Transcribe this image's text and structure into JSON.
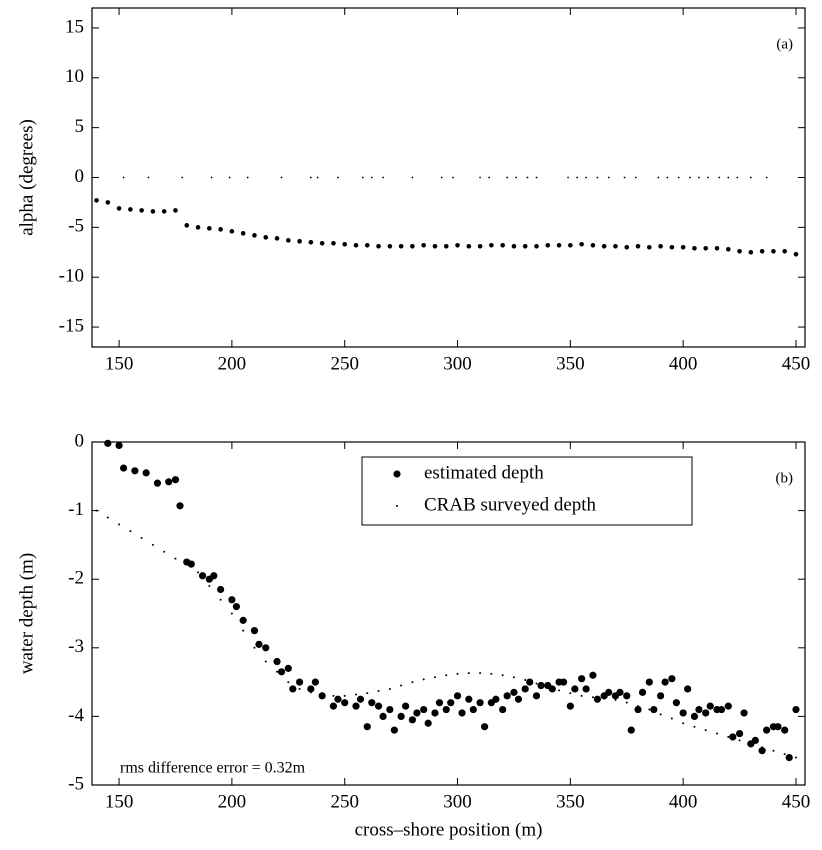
{
  "chart_data": [
    {
      "type": "scatter",
      "panel_label": "(a)",
      "ylabel": "alpha (degrees)",
      "xlim": [
        138,
        454
      ],
      "ylim": [
        -17,
        17
      ],
      "xticks": [
        150,
        200,
        250,
        300,
        350,
        400,
        450
      ],
      "yticks": [
        -15,
        -10,
        -5,
        0,
        5,
        10,
        15
      ],
      "series": [
        {
          "color": "#000000",
          "x": [
            140,
            145,
            150,
            155,
            160,
            165,
            170,
            175,
            180,
            185,
            190,
            195,
            200,
            205,
            210,
            215,
            220,
            225,
            230,
            235,
            240,
            245,
            250,
            255,
            260,
            265,
            270,
            275,
            280,
            285,
            290,
            295,
            300,
            305,
            310,
            315,
            320,
            325,
            330,
            335,
            340,
            345,
            350,
            355,
            360,
            365,
            370,
            375,
            380,
            385,
            390,
            395,
            400,
            405,
            410,
            415,
            420,
            425,
            430,
            435,
            440,
            445,
            450
          ],
          "values": [
            -2.3,
            -2.5,
            -3.1,
            -3.2,
            -3.3,
            -3.4,
            -3.4,
            -3.3,
            -4.8,
            -5.0,
            -5.1,
            -5.2,
            -5.4,
            -5.6,
            -5.8,
            -6.0,
            -6.1,
            -6.3,
            -6.4,
            -6.5,
            -6.6,
            -6.6,
            -6.7,
            -6.8,
            -6.8,
            -6.9,
            -6.9,
            -6.9,
            -6.9,
            -6.8,
            -6.9,
            -6.9,
            -6.8,
            -6.9,
            -6.9,
            -6.8,
            -6.8,
            -6.9,
            -6.9,
            -6.9,
            -6.8,
            -6.8,
            -6.8,
            -6.7,
            -6.8,
            -6.9,
            -6.9,
            -7.0,
            -6.9,
            -7.0,
            -6.9,
            -7.0,
            -7.0,
            -7.1,
            -7.1,
            -7.1,
            -7.2,
            -7.4,
            -7.5,
            -7.4,
            -7.4,
            -7.4,
            -7.7
          ]
        },
        {
          "color": "#000000",
          "x": [
            152,
            163,
            178,
            191,
            199,
            207,
            222,
            235,
            238,
            247,
            258,
            262,
            267,
            280,
            293,
            298,
            310,
            314,
            322,
            326,
            331,
            335,
            349,
            353,
            357,
            362,
            367,
            374,
            379,
            389,
            393,
            398,
            403,
            407,
            411,
            416,
            420,
            424,
            430,
            437
          ],
          "values": [
            0,
            0,
            0,
            0,
            0,
            0,
            0,
            0,
            0,
            0,
            0,
            0,
            0,
            0,
            0,
            0,
            0,
            0,
            0,
            0,
            0,
            0,
            0,
            0,
            0,
            0,
            0,
            0,
            0,
            0,
            0,
            0,
            0,
            0,
            0,
            0,
            0,
            0,
            0,
            0
          ]
        }
      ]
    },
    {
      "type": "scatter",
      "panel_label": "(b)",
      "ylabel": "water depth (m)",
      "xlabel": "cross–shore position (m)",
      "annotation": "rms difference error = 0.32m",
      "legend": "upper right",
      "xlim": [
        138,
        454
      ],
      "ylim": [
        -5,
        0
      ],
      "xticks": [
        150,
        200,
        250,
        300,
        350,
        400,
        450
      ],
      "yticks": [
        -5,
        -4,
        -3,
        -2,
        -1,
        0
      ],
      "series": [
        {
          "name": "estimated depth",
          "color": "#000000",
          "x": [
            145,
            150,
            152,
            157,
            162,
            167,
            172,
            175,
            177,
            180,
            182,
            187,
            190,
            192,
            195,
            200,
            202,
            205,
            210,
            212,
            215,
            220,
            222,
            225,
            227,
            230,
            235,
            237,
            240,
            245,
            247,
            250,
            255,
            257,
            260,
            262,
            265,
            267,
            270,
            272,
            275,
            277,
            280,
            282,
            285,
            287,
            290,
            292,
            295,
            297,
            300,
            302,
            305,
            307,
            310,
            312,
            315,
            317,
            320,
            322,
            325,
            327,
            330,
            332,
            335,
            337,
            340,
            342,
            345,
            347,
            350,
            352,
            355,
            357,
            360,
            362,
            365,
            367,
            370,
            372,
            375,
            377,
            380,
            382,
            385,
            387,
            390,
            392,
            395,
            397,
            400,
            402,
            405,
            407,
            410,
            412,
            415,
            417,
            420,
            422,
            425,
            427,
            430,
            432,
            435,
            437,
            440,
            442,
            445,
            447,
            450
          ],
          "values": [
            -0.02,
            -0.05,
            -0.38,
            -0.42,
            -0.45,
            -0.6,
            -0.58,
            -0.55,
            -0.93,
            -1.75,
            -1.78,
            -1.95,
            -2.0,
            -1.95,
            -2.15,
            -2.3,
            -2.4,
            -2.6,
            -2.75,
            -2.95,
            -3.0,
            -3.2,
            -3.35,
            -3.3,
            -3.6,
            -3.5,
            -3.6,
            -3.5,
            -3.7,
            -3.85,
            -3.75,
            -3.8,
            -3.85,
            -3.75,
            -4.15,
            -3.8,
            -3.85,
            -4.0,
            -3.9,
            -4.2,
            -4.0,
            -3.85,
            -4.05,
            -3.95,
            -3.9,
            -4.1,
            -3.95,
            -3.8,
            -3.9,
            -3.8,
            -3.7,
            -3.95,
            -3.75,
            -3.9,
            -3.8,
            -4.15,
            -3.8,
            -3.75,
            -3.9,
            -3.7,
            -3.65,
            -3.75,
            -3.6,
            -3.5,
            -3.7,
            -3.55,
            -3.55,
            -3.6,
            -3.5,
            -3.5,
            -3.85,
            -3.6,
            -3.45,
            -3.6,
            -3.4,
            -3.75,
            -3.7,
            -3.65,
            -3.7,
            -3.65,
            -3.7,
            -4.2,
            -3.9,
            -3.65,
            -3.5,
            -3.9,
            -3.7,
            -3.5,
            -3.45,
            -3.8,
            -3.95,
            -3.6,
            -4.0,
            -3.9,
            -3.95,
            -3.85,
            -3.9,
            -3.9,
            -3.85,
            -4.3,
            -4.25,
            -3.95,
            -4.4,
            -4.35,
            -4.5,
            -4.2,
            -4.15,
            -4.15,
            -4.2,
            -4.6,
            -3.9
          ]
        },
        {
          "name": "CRAB surveyed depth",
          "color": "#000000",
          "x": [
            140,
            145,
            150,
            155,
            160,
            165,
            170,
            175,
            180,
            185,
            190,
            195,
            200,
            205,
            210,
            215,
            220,
            225,
            230,
            235,
            240,
            245,
            250,
            255,
            260,
            265,
            270,
            275,
            280,
            285,
            290,
            295,
            300,
            305,
            310,
            315,
            320,
            325,
            330,
            335,
            340,
            345,
            350,
            355,
            360,
            365,
            370,
            375,
            380,
            385,
            390,
            395,
            400,
            405,
            410,
            415,
            420,
            425,
            430,
            435,
            440,
            445,
            450
          ],
          "values": [
            -1.0,
            -1.1,
            -1.2,
            -1.3,
            -1.4,
            -1.5,
            -1.6,
            -1.7,
            -1.75,
            -1.9,
            -2.1,
            -2.3,
            -2.5,
            -2.75,
            -3.0,
            -3.2,
            -3.35,
            -3.5,
            -3.6,
            -3.65,
            -3.7,
            -3.7,
            -3.7,
            -3.68,
            -3.66,
            -3.63,
            -3.6,
            -3.55,
            -3.5,
            -3.46,
            -3.43,
            -3.4,
            -3.38,
            -3.37,
            -3.37,
            -3.38,
            -3.4,
            -3.43,
            -3.47,
            -3.52,
            -3.57,
            -3.62,
            -3.66,
            -3.7,
            -3.72,
            -3.74,
            -3.76,
            -3.8,
            -3.85,
            -3.9,
            -3.97,
            -4.03,
            -4.1,
            -4.15,
            -4.2,
            -4.25,
            -4.3,
            -4.35,
            -4.4,
            -4.45,
            -4.5,
            -4.55,
            -4.6
          ]
        }
      ]
    }
  ]
}
